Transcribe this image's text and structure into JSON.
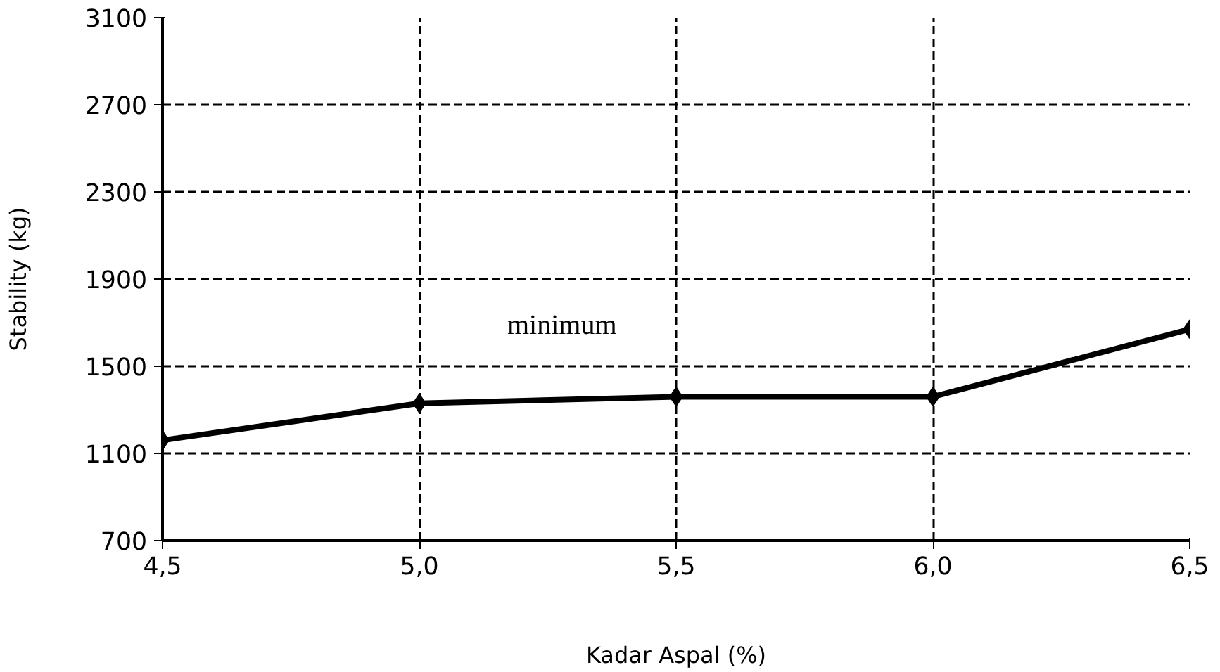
{
  "chart_data": {
    "type": "line",
    "xlabel": "Kadar Aspal (%)",
    "ylabel": "Stability (kg)",
    "x": [
      4.5,
      5.0,
      5.5,
      6.0,
      6.5
    ],
    "series": [
      {
        "color": "#000000",
        "values": [
          1160,
          1330,
          1360,
          1360,
          1670
        ]
      }
    ],
    "xlim": [
      4.5,
      6.5
    ],
    "ylim": [
      700,
      3100
    ],
    "xticks": [
      {
        "value": 4.5,
        "label": "4,5"
      },
      {
        "value": 5.0,
        "label": "5,0"
      },
      {
        "value": 5.5,
        "label": "5,5"
      },
      {
        "value": 6.0,
        "label": "6,0"
      },
      {
        "value": 6.5,
        "label": "6,5"
      }
    ],
    "yticks": [
      700,
      1100,
      1500,
      1900,
      2300,
      2700,
      3100
    ],
    "grid": true,
    "marker": "diamond",
    "line_style": "solid",
    "annotations": [
      "minimum"
    ]
  }
}
